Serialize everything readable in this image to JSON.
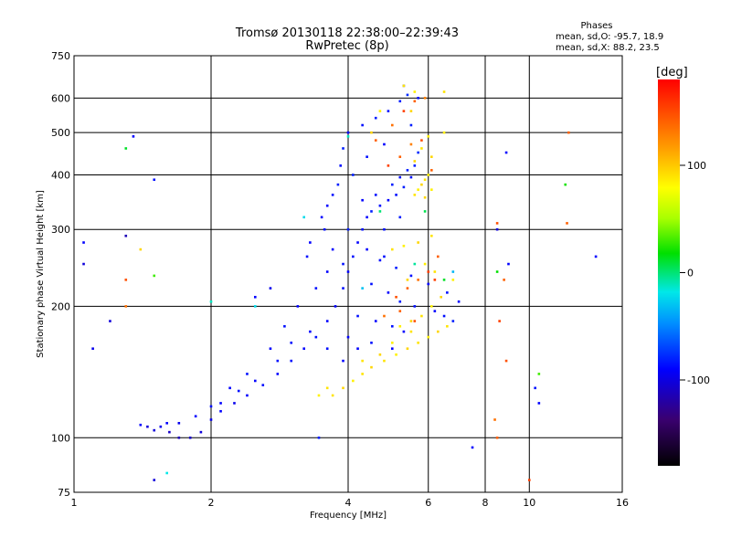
{
  "chart_data": {
    "type": "scatter",
    "title": "Tromsø 20130118 22:38:00–22:39:43",
    "subtitle": "RwPretec (8p)",
    "stats": {
      "heading": "Phases",
      "line_o": "mean, sd,O:  -95.7, 18.9",
      "line_x": "mean, sd,X:   88.2, 23.5"
    },
    "xlabel": "Frequency [MHz]",
    "ylabel": "Stationary phase Virtual Height [km]",
    "xscale": "log",
    "yscale": "log",
    "xlim": [
      1,
      16
    ],
    "ylim": [
      75,
      750
    ],
    "xticks": [
      1,
      2,
      4,
      6,
      8,
      10,
      16
    ],
    "yticks": [
      75,
      100,
      200,
      300,
      400,
      500,
      600,
      750
    ],
    "xgrid": [
      2,
      4,
      6,
      8,
      10
    ],
    "ygrid": [
      100,
      200,
      300,
      400,
      500,
      600
    ],
    "colorbar": {
      "label": "[deg]",
      "range": [
        -180,
        180
      ],
      "ticks": [
        100,
        0,
        -100
      ]
    },
    "series": [
      {
        "points": [
          [
            1.45,
            106,
            -110
          ],
          [
            1.55,
            106,
            -105
          ],
          [
            1.62,
            103,
            -115
          ],
          [
            1.7,
            100,
            -120
          ],
          [
            1.8,
            100,
            -115
          ],
          [
            1.9,
            103,
            -110
          ],
          [
            2.0,
            110,
            -105
          ],
          [
            2.1,
            115,
            -100
          ],
          [
            2.25,
            120,
            -105
          ],
          [
            2.4,
            125,
            -100
          ],
          [
            2.6,
            132,
            -95
          ],
          [
            2.8,
            140,
            -100
          ],
          [
            3.0,
            150,
            -95
          ],
          [
            3.2,
            160,
            -100
          ],
          [
            3.4,
            170,
            -95
          ],
          [
            3.6,
            185,
            -100
          ],
          [
            3.75,
            200,
            -100
          ],
          [
            3.9,
            220,
            -95
          ],
          [
            4.0,
            240,
            -100
          ],
          [
            4.1,
            260,
            -95
          ],
          [
            4.2,
            280,
            -100
          ],
          [
            4.3,
            300,
            -95
          ],
          [
            4.4,
            320,
            -100
          ],
          [
            4.5,
            330,
            -90
          ],
          [
            4.7,
            340,
            -95
          ],
          [
            4.9,
            350,
            -100
          ],
          [
            5.1,
            360,
            -95
          ],
          [
            5.3,
            375,
            -90
          ],
          [
            5.5,
            395,
            -95
          ],
          [
            5.6,
            420,
            -90
          ],
          [
            5.7,
            450,
            -85
          ],
          [
            3.5,
            320,
            -100
          ],
          [
            3.55,
            300,
            -95
          ],
          [
            3.6,
            340,
            -100
          ],
          [
            3.7,
            360,
            -95
          ],
          [
            3.8,
            380,
            -90
          ],
          [
            3.85,
            420,
            -95
          ],
          [
            3.9,
            460,
            -90
          ],
          [
            4.0,
            500,
            -100
          ],
          [
            4.3,
            520,
            -95
          ],
          [
            4.6,
            540,
            -90
          ],
          [
            4.9,
            560,
            -95
          ],
          [
            5.2,
            590,
            -90
          ],
          [
            5.4,
            610,
            -85
          ],
          [
            5.3,
            640,
            -90
          ],
          [
            3.3,
            280,
            -100
          ],
          [
            3.25,
            260,
            -95
          ],
          [
            4.2,
            190,
            -95
          ],
          [
            4.6,
            185,
            -100
          ],
          [
            5.0,
            180,
            -95
          ],
          [
            5.3,
            175,
            -100
          ],
          [
            4.5,
            225,
            -95
          ],
          [
            4.9,
            215,
            -100
          ],
          [
            5.2,
            205,
            -90
          ],
          [
            5.6,
            200,
            -95
          ],
          [
            6.2,
            195,
            -100
          ],
          [
            4.7,
            255,
            -95
          ],
          [
            5.1,
            245,
            -90
          ],
          [
            5.5,
            235,
            -95
          ],
          [
            6.0,
            225,
            -100
          ],
          [
            6.6,
            215,
            -95
          ],
          [
            7.0,
            205,
            -100
          ],
          [
            3.0,
            165,
            -95
          ],
          [
            3.3,
            175,
            -100
          ],
          [
            3.6,
            160,
            -95
          ],
          [
            3.9,
            150,
            -100
          ],
          [
            2.8,
            150,
            -95
          ],
          [
            2.5,
            135,
            -100
          ],
          [
            2.3,
            128,
            -95
          ],
          [
            2.1,
            120,
            -100
          ],
          [
            1.4,
            107,
            -100
          ],
          [
            1.5,
            104,
            -110
          ],
          [
            2.7,
            220,
            -105
          ],
          [
            2.5,
            210,
            -100
          ],
          [
            1.2,
            185,
            -110
          ],
          [
            1.1,
            160,
            -105
          ],
          [
            1.05,
            280,
            -100
          ],
          [
            1.05,
            250,
            -110
          ],
          [
            1.3,
            290,
            -120
          ],
          [
            1.5,
            390,
            -95
          ],
          [
            1.35,
            490,
            -100
          ],
          [
            3.45,
            100,
            -90
          ],
          [
            7.5,
            95,
            -100
          ],
          [
            1.5,
            80,
            -110
          ],
          [
            4.0,
            170,
            -100
          ],
          [
            4.5,
            165,
            -95
          ],
          [
            5.0,
            160,
            -100
          ],
          [
            3.9,
            250,
            -95
          ],
          [
            4.1,
            400,
            -90
          ],
          [
            4.4,
            440,
            -95
          ],
          [
            4.8,
            470,
            -100
          ],
          [
            5.7,
            600,
            -95
          ],
          [
            5.5,
            520,
            -90
          ],
          [
            4.2,
            160,
            -100
          ],
          [
            4.8,
            300,
            -95
          ],
          [
            5.2,
            320,
            -90
          ],
          [
            3.7,
            270,
            -100
          ],
          [
            3.4,
            220,
            -95
          ],
          [
            3.1,
            200,
            -100
          ],
          [
            2.9,
            180,
            -95
          ],
          [
            2.7,
            160,
            -100
          ],
          [
            2.4,
            140,
            -95
          ],
          [
            2.2,
            130,
            -100
          ],
          [
            2.0,
            118,
            -95
          ],
          [
            1.85,
            112,
            -100
          ],
          [
            1.7,
            108,
            -105
          ],
          [
            1.6,
            108,
            -100
          ],
          [
            6.5,
            190,
            -95
          ],
          [
            6.8,
            185,
            -90
          ],
          [
            8.9,
            450,
            -100
          ],
          [
            8.5,
            300,
            -110
          ],
          [
            9.0,
            250,
            -100
          ],
          [
            10.3,
            130,
            -95
          ],
          [
            10.5,
            120,
            -100
          ],
          [
            14.0,
            260,
            -100
          ],
          [
            4.3,
            350,
            -100
          ],
          [
            4.6,
            360,
            -95
          ],
          [
            5.0,
            380,
            -90
          ],
          [
            5.2,
            395,
            -95
          ],
          [
            5.4,
            410,
            -90
          ],
          [
            4.0,
            300,
            -90
          ],
          [
            4.4,
            270,
            -100
          ],
          [
            4.8,
            260,
            -95
          ],
          [
            3.6,
            240,
            -100
          ]
        ]
      },
      {
        "points": [
          [
            3.7,
            125,
            105
          ],
          [
            3.9,
            130,
            110
          ],
          [
            4.1,
            135,
            100
          ],
          [
            4.3,
            140,
            105
          ],
          [
            4.5,
            145,
            110
          ],
          [
            4.8,
            150,
            105
          ],
          [
            5.1,
            155,
            100
          ],
          [
            5.4,
            160,
            110
          ],
          [
            5.7,
            165,
            105
          ],
          [
            6.0,
            170,
            100
          ],
          [
            6.3,
            175,
            110
          ],
          [
            6.6,
            180,
            105
          ],
          [
            5.2,
            180,
            100
          ],
          [
            5.5,
            185,
            110
          ],
          [
            5.8,
            190,
            105
          ],
          [
            6.1,
            200,
            100
          ],
          [
            5.6,
            360,
            105
          ],
          [
            5.7,
            370,
            100
          ],
          [
            5.8,
            380,
            110
          ],
          [
            5.9,
            390,
            105
          ],
          [
            6.0,
            400,
            100
          ],
          [
            5.6,
            430,
            110
          ],
          [
            5.8,
            460,
            105
          ],
          [
            6.0,
            490,
            100
          ],
          [
            5.5,
            560,
            110
          ],
          [
            5.3,
            640,
            105
          ],
          [
            5.6,
            620,
            100
          ],
          [
            6.1,
            440,
            110
          ],
          [
            5.9,
            250,
            100
          ],
          [
            6.2,
            240,
            105
          ],
          [
            5.4,
            230,
            110
          ],
          [
            6.5,
            500,
            100
          ],
          [
            4.3,
            150,
            105
          ],
          [
            4.7,
            155,
            110
          ],
          [
            5.0,
            165,
            100
          ],
          [
            5.5,
            175,
            105
          ],
          [
            6.4,
            210,
            110
          ],
          [
            6.8,
            230,
            100
          ],
          [
            6.1,
            290,
            105
          ],
          [
            5.7,
            280,
            110
          ],
          [
            5.3,
            275,
            100
          ],
          [
            5.0,
            270,
            105
          ],
          [
            4.5,
            500,
            110
          ],
          [
            4.7,
            560,
            100
          ],
          [
            6.5,
            620,
            105
          ],
          [
            1.4,
            270,
            110
          ],
          [
            3.45,
            125,
            100
          ],
          [
            3.6,
            130,
            105
          ],
          [
            5.9,
            355,
            110
          ],
          [
            6.1,
            370,
            100
          ]
        ]
      },
      {
        "points": [
          [
            4.9,
            420,
            160
          ],
          [
            5.2,
            440,
            150
          ],
          [
            5.5,
            470,
            140
          ],
          [
            5.8,
            480,
            155
          ],
          [
            6.1,
            410,
            150
          ],
          [
            5.0,
            520,
            145
          ],
          [
            5.3,
            560,
            160
          ],
          [
            5.6,
            590,
            150
          ],
          [
            5.9,
            600,
            140
          ],
          [
            5.1,
            210,
            155
          ],
          [
            5.4,
            220,
            150
          ],
          [
            5.7,
            230,
            145
          ],
          [
            6.0,
            240,
            160
          ],
          [
            6.3,
            260,
            150
          ],
          [
            4.8,
            190,
            145
          ],
          [
            5.2,
            195,
            150
          ],
          [
            5.6,
            185,
            155
          ],
          [
            8.6,
            185,
            160
          ],
          [
            8.8,
            230,
            150
          ],
          [
            8.5,
            310,
            155
          ],
          [
            8.4,
            110,
            145
          ],
          [
            8.5,
            100,
            150
          ],
          [
            10.0,
            80,
            160
          ],
          [
            12.2,
            500,
            150
          ],
          [
            1.3,
            230,
            155
          ],
          [
            6.2,
            230,
            160
          ],
          [
            4.6,
            480,
            150
          ],
          [
            1.3,
            200,
            145
          ],
          [
            8.9,
            150,
            155
          ],
          [
            12.1,
            310,
            150
          ]
        ]
      },
      {
        "points": [
          [
            2.0,
            205,
            -10
          ],
          [
            2.5,
            200,
            -20
          ],
          [
            6.5,
            230,
            10
          ],
          [
            12.0,
            380,
            20
          ],
          [
            1.5,
            235,
            30
          ],
          [
            8.5,
            240,
            15
          ],
          [
            5.6,
            250,
            -5
          ],
          [
            4.0,
            490,
            -10
          ],
          [
            1.3,
            460,
            10
          ],
          [
            5.9,
            330,
            5
          ],
          [
            10.5,
            140,
            30
          ],
          [
            1.6,
            83,
            -15
          ],
          [
            3.2,
            320,
            -20
          ],
          [
            4.7,
            330,
            0
          ],
          [
            4.3,
            220,
            -30
          ],
          [
            6.8,
            240,
            -35
          ]
        ]
      }
    ]
  }
}
